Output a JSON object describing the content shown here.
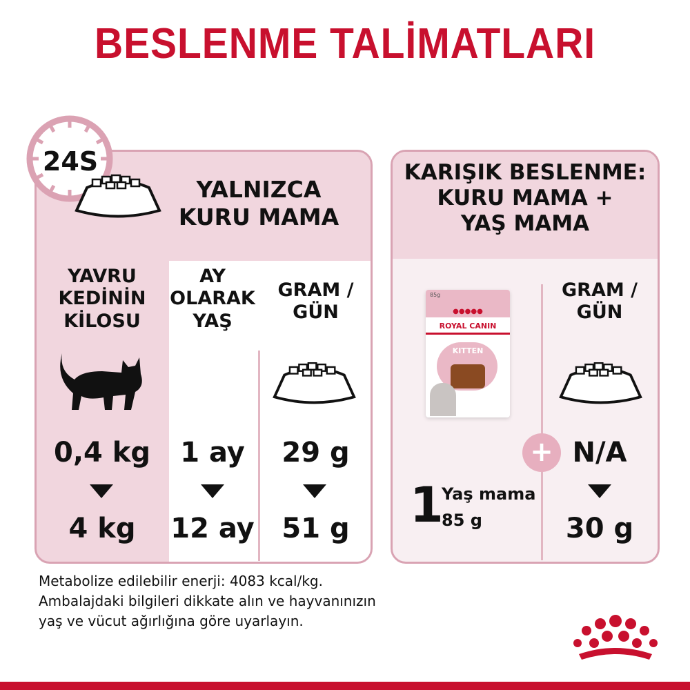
{
  "title": "BESLENME TALİMATLARI",
  "colors": {
    "brand_red": "#c8102e",
    "panel_pink": "#f1d6de",
    "panel_border": "#d9a3b3",
    "light_pink": "#f8eff2"
  },
  "dry_only": {
    "clock_badge": "24S",
    "heading": [
      "YALNIZCA",
      "KURU MAMA"
    ],
    "columns": [
      {
        "header": [
          "YAVRU",
          "KEDİNİN",
          "KİLOSU"
        ],
        "icon": "kitten-silhouette-icon",
        "from": "0,4 kg",
        "to": "4 kg"
      },
      {
        "header": [
          "AY",
          "OLARAK",
          "YAŞ"
        ],
        "from": "1 ay",
        "to": "12 ay"
      },
      {
        "header": [
          "GRAM /",
          "GÜN"
        ],
        "icon": "food-bowl-icon",
        "from": "29 g",
        "to": "51 g"
      }
    ]
  },
  "mixed": {
    "heading": [
      "KARIŞIK BESLENME:",
      "KURU MAMA +",
      "YAŞ MAMA"
    ],
    "pouch": {
      "brand": "ROYAL CANIN",
      "weight": "85g",
      "product": "KITTEN"
    },
    "wet_count": "1",
    "wet_label": "Yaş mama",
    "wet_weight": "85 g",
    "plus": "+",
    "dry_header": [
      "GRAM /",
      "GÜN"
    ],
    "from": "N/A",
    "to": "30 g"
  },
  "notes": [
    "Metabolize edilebilir enerji: 4083 kcal/kg.",
    "Ambalajdaki bilgileri dikkate alın ve hayvanınızın",
    "yaş ve vücut ağırlığına göre uyarlayın."
  ]
}
